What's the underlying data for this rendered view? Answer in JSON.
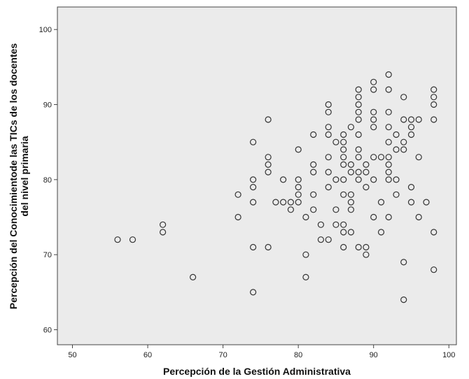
{
  "chart_data": {
    "type": "scatter",
    "title": "",
    "xlabel": "Percepción de la Gestión Administrativa",
    "ylabel_lines": [
      "Percepción del Conocimientode las TICs de los docentes",
      "del nivel primaria"
    ],
    "xlim": [
      48,
      101
    ],
    "ylim": [
      58,
      103
    ],
    "xticks": [
      50,
      60,
      70,
      80,
      90,
      100
    ],
    "yticks": [
      60,
      70,
      80,
      90,
      100
    ],
    "grid": false,
    "colors": {
      "plot_background": "#ebebeb",
      "marker_stroke": "#333333",
      "frame": "#444444"
    },
    "points": [
      [
        56,
        72
      ],
      [
        58,
        72
      ],
      [
        62,
        74
      ],
      [
        62,
        73
      ],
      [
        66,
        67
      ],
      [
        72,
        78
      ],
      [
        72,
        75
      ],
      [
        74,
        85
      ],
      [
        74,
        80
      ],
      [
        74,
        79
      ],
      [
        74,
        77
      ],
      [
        74,
        71
      ],
      [
        74,
        65
      ],
      [
        76,
        88
      ],
      [
        76,
        83
      ],
      [
        76,
        82
      ],
      [
        76,
        81
      ],
      [
        76,
        71
      ],
      [
        77,
        77
      ],
      [
        78,
        80
      ],
      [
        78,
        77
      ],
      [
        79,
        77
      ],
      [
        79,
        76
      ],
      [
        80,
        84
      ],
      [
        80,
        80
      ],
      [
        80,
        79
      ],
      [
        80,
        78
      ],
      [
        80,
        77
      ],
      [
        81,
        75
      ],
      [
        81,
        70
      ],
      [
        81,
        67
      ],
      [
        82,
        86
      ],
      [
        82,
        82
      ],
      [
        82,
        81
      ],
      [
        82,
        78
      ],
      [
        82,
        76
      ],
      [
        83,
        74
      ],
      [
        83,
        72
      ],
      [
        84,
        90
      ],
      [
        84,
        89
      ],
      [
        84,
        87
      ],
      [
        84,
        86
      ],
      [
        84,
        83
      ],
      [
        84,
        81
      ],
      [
        84,
        79
      ],
      [
        84,
        72
      ],
      [
        85,
        85
      ],
      [
        85,
        80
      ],
      [
        85,
        76
      ],
      [
        85,
        74
      ],
      [
        86,
        86
      ],
      [
        86,
        85
      ],
      [
        86,
        84
      ],
      [
        86,
        83
      ],
      [
        86,
        82
      ],
      [
        86,
        80
      ],
      [
        86,
        78
      ],
      [
        86,
        74
      ],
      [
        86,
        73
      ],
      [
        86,
        71
      ],
      [
        87,
        87
      ],
      [
        87,
        82
      ],
      [
        87,
        81
      ],
      [
        87,
        78
      ],
      [
        87,
        77
      ],
      [
        87,
        76
      ],
      [
        87,
        73
      ],
      [
        88,
        92
      ],
      [
        88,
        91
      ],
      [
        88,
        90
      ],
      [
        88,
        89
      ],
      [
        88,
        88
      ],
      [
        88,
        86
      ],
      [
        88,
        84
      ],
      [
        88,
        83
      ],
      [
        88,
        81
      ],
      [
        88,
        80
      ],
      [
        88,
        71
      ],
      [
        89,
        82
      ],
      [
        89,
        81
      ],
      [
        89,
        79
      ],
      [
        89,
        71
      ],
      [
        89,
        70
      ],
      [
        90,
        93
      ],
      [
        90,
        92
      ],
      [
        90,
        89
      ],
      [
        90,
        88
      ],
      [
        90,
        87
      ],
      [
        90,
        83
      ],
      [
        90,
        80
      ],
      [
        90,
        75
      ],
      [
        91,
        83
      ],
      [
        91,
        77
      ],
      [
        91,
        73
      ],
      [
        92,
        94
      ],
      [
        92,
        92
      ],
      [
        92,
        89
      ],
      [
        92,
        87
      ],
      [
        92,
        85
      ],
      [
        92,
        83
      ],
      [
        92,
        82
      ],
      [
        92,
        81
      ],
      [
        92,
        80
      ],
      [
        92,
        75
      ],
      [
        93,
        86
      ],
      [
        93,
        84
      ],
      [
        93,
        80
      ],
      [
        93,
        78
      ],
      [
        94,
        91
      ],
      [
        94,
        88
      ],
      [
        94,
        85
      ],
      [
        94,
        84
      ],
      [
        94,
        69
      ],
      [
        94,
        64
      ],
      [
        95,
        88
      ],
      [
        95,
        87
      ],
      [
        95,
        86
      ],
      [
        95,
        79
      ],
      [
        95,
        77
      ],
      [
        96,
        88
      ],
      [
        96,
        83
      ],
      [
        96,
        75
      ],
      [
        97,
        77
      ],
      [
        98,
        92
      ],
      [
        98,
        91
      ],
      [
        98,
        90
      ],
      [
        98,
        88
      ],
      [
        98,
        73
      ],
      [
        98,
        68
      ]
    ]
  }
}
